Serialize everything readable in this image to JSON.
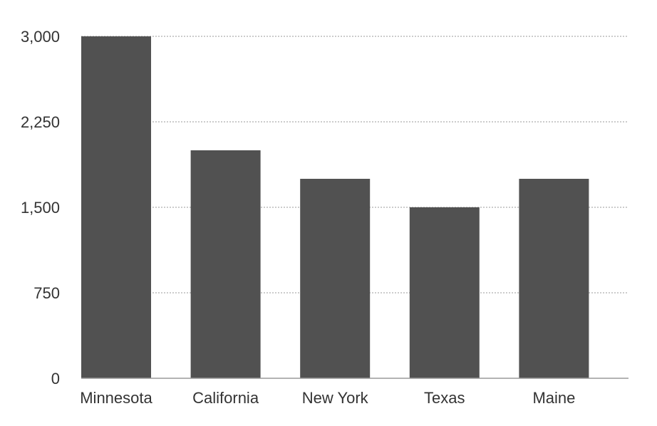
{
  "chart_data": {
    "type": "bar",
    "title": "",
    "xlabel": "",
    "ylabel": "",
    "categories": [
      "Minnesota",
      "California",
      "New York",
      "Texas",
      "Maine"
    ],
    "values": [
      3000,
      2000,
      1750,
      1500,
      1750
    ],
    "ylim": [
      0,
      3000
    ],
    "yticks": [
      0,
      750,
      1500,
      2250,
      3000
    ],
    "ytick_labels": [
      "0",
      "750",
      "1,500",
      "2,250",
      "3,000"
    ],
    "grid": true,
    "legend": "none",
    "colors": {
      "bar": "#515151",
      "grid": "#9a9a9a",
      "text": "#333333"
    }
  }
}
